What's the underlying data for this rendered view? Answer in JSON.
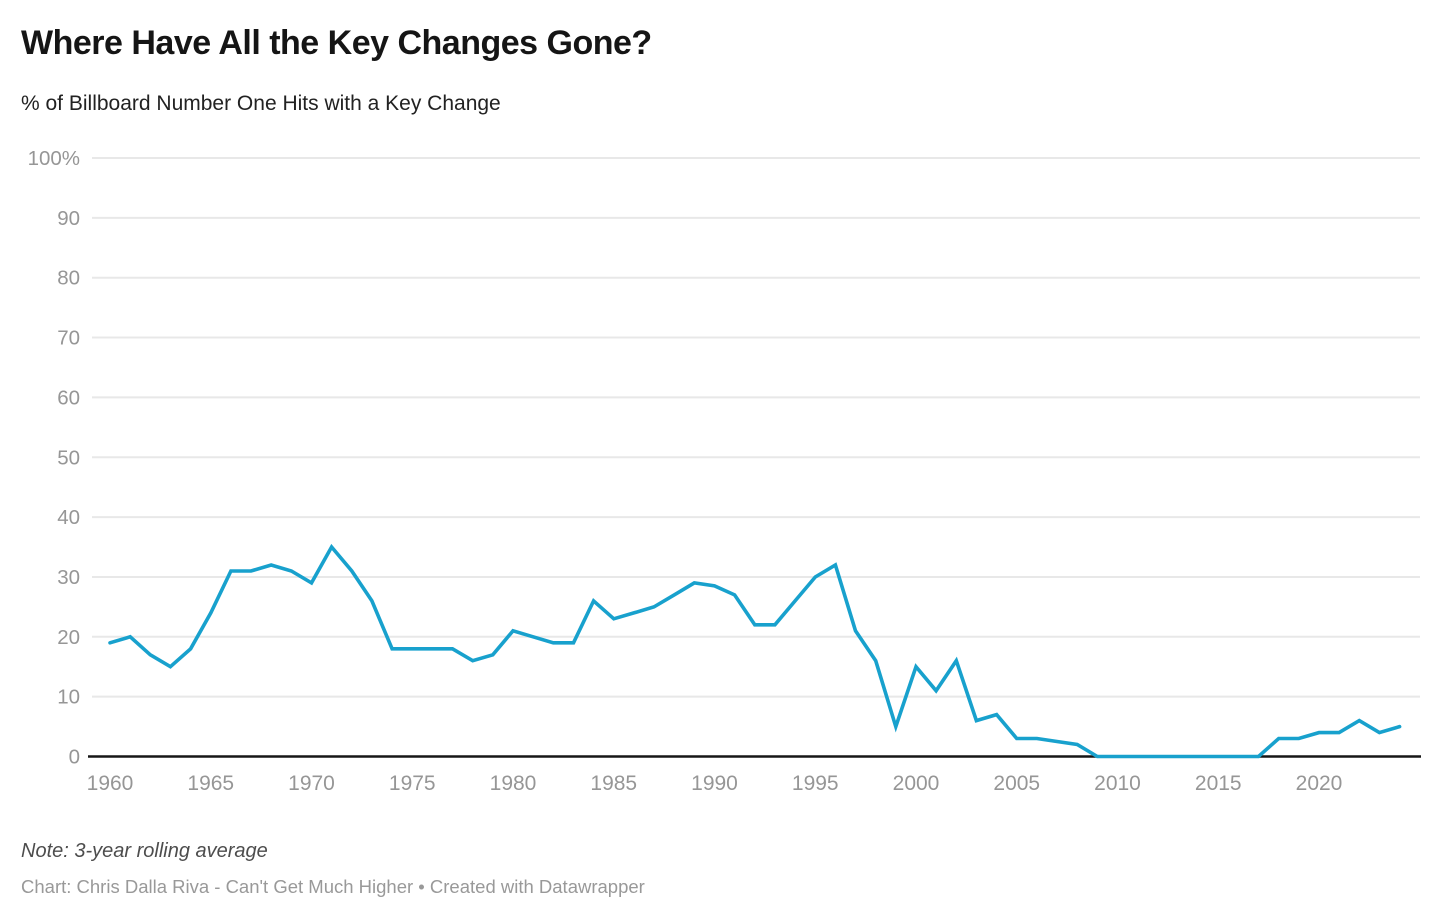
{
  "chart_data": {
    "type": "line",
    "title": "Where Have All the Key Changes Gone?",
    "subtitle": "% of Billboard Number One Hits with a Key Change",
    "series_name": "% of Billboard Number One Hits with a Key Change",
    "x": [
      1960,
      1961,
      1962,
      1963,
      1964,
      1965,
      1966,
      1967,
      1968,
      1969,
      1970,
      1971,
      1972,
      1973,
      1974,
      1975,
      1976,
      1977,
      1978,
      1979,
      1980,
      1981,
      1982,
      1983,
      1984,
      1985,
      1986,
      1987,
      1988,
      1989,
      1990,
      1991,
      1992,
      1993,
      1994,
      1995,
      1996,
      1997,
      1998,
      1999,
      2000,
      2001,
      2002,
      2003,
      2004,
      2005,
      2006,
      2007,
      2008,
      2009,
      2010,
      2011,
      2012,
      2013,
      2014,
      2015,
      2016,
      2017,
      2018,
      2019,
      2020,
      2021,
      2022,
      2023,
      2024
    ],
    "values": [
      19,
      20,
      17,
      15,
      18,
      24,
      31,
      31,
      32,
      31,
      29,
      35,
      31,
      26,
      18,
      18,
      18,
      18,
      16,
      17,
      21,
      20,
      19,
      19,
      26,
      23,
      24,
      25,
      27,
      29,
      28.5,
      27,
      22,
      22,
      26,
      30,
      32,
      21,
      16,
      5,
      15,
      11,
      16,
      6,
      7,
      3,
      3,
      2.5,
      2,
      0,
      0,
      0,
      0,
      0,
      0,
      0,
      0,
      0,
      3,
      3,
      4,
      4,
      6,
      4,
      5
    ],
    "ylim": [
      0,
      100
    ],
    "yticks": [
      0,
      10,
      20,
      30,
      40,
      50,
      60,
      70,
      80,
      90,
      100
    ],
    "ytick_labels": [
      "0",
      "10",
      "20",
      "30",
      "40",
      "50",
      "60",
      "70",
      "80",
      "90",
      "100%"
    ],
    "xticks": [
      1960,
      1965,
      1970,
      1975,
      1980,
      1985,
      1990,
      1995,
      2000,
      2005,
      2010,
      2015,
      2020
    ],
    "xtick_labels": [
      "1960",
      "1965",
      "1970",
      "1975",
      "1980",
      "1985",
      "1990",
      "1995",
      "2000",
      "2005",
      "2010",
      "2015",
      "2020"
    ],
    "grid": "horizontal-gridlines, black zero baseline, no vertical gridlines",
    "legend": "none",
    "note": "Note: 3-year rolling average",
    "source": "Chart: Chris Dalla Riva - Can't Get Much Higher • Created with Datawrapper"
  },
  "colors": {
    "line": "#18a1cd",
    "gridline": "#e8e8e8",
    "baseline": "#161616",
    "axis_label": "#969696",
    "title": "#151515",
    "subtitle": "#222222",
    "note": "#4d4d4d",
    "credit": "#999999",
    "background": "#ffffff"
  }
}
